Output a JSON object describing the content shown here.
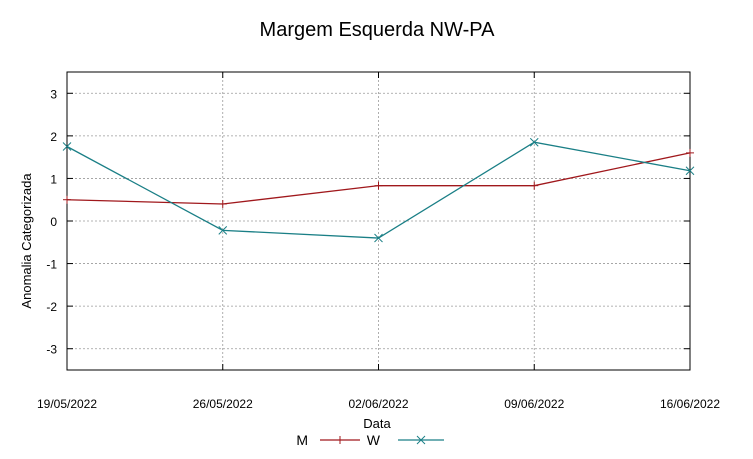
{
  "chart_data": {
    "type": "line",
    "title": "Margem Esquerda NW-PA",
    "xlabel": "Data",
    "ylabel": "Anomalia Categorizada",
    "categories": [
      "19/05/2022",
      "26/05/2022",
      "02/06/2022",
      "09/06/2022",
      "16/06/2022"
    ],
    "ylim": [
      -3.5,
      3.5
    ],
    "yticks": [
      -3,
      -2,
      -1,
      0,
      1,
      2,
      3
    ],
    "grid": true,
    "legend_position": "bottom",
    "series": [
      {
        "name": "M",
        "color": "#a0181c",
        "marker": "plus",
        "values": [
          0.5,
          0.4,
          0.83,
          0.83,
          1.6
        ]
      },
      {
        "name": "W",
        "color": "#1a7f86",
        "marker": "x",
        "values": [
          1.75,
          -0.22,
          -0.4,
          1.85,
          1.18
        ]
      }
    ]
  }
}
